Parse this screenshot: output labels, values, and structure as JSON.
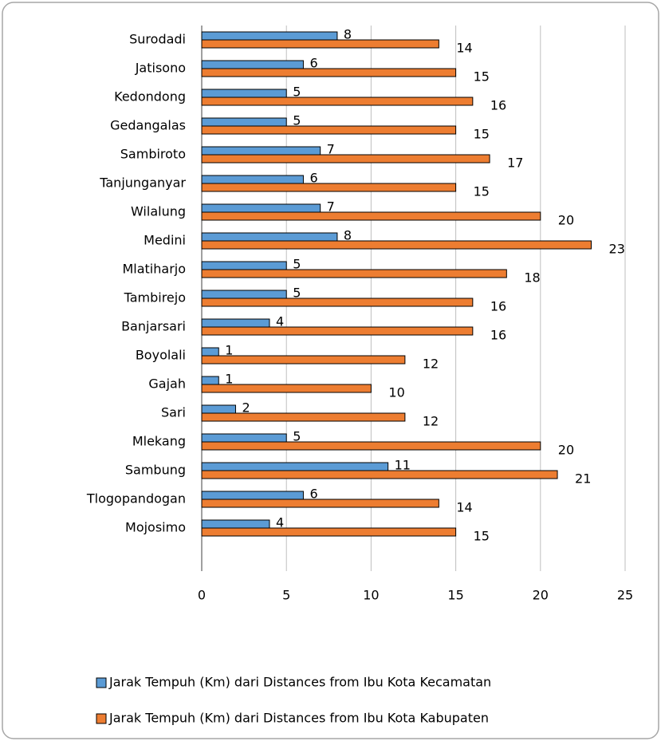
{
  "chart_data": {
    "type": "hbar",
    "categories": [
      "Surodadi",
      "Jatisono",
      "Kedondong",
      "Gedangalas",
      "Sambiroto",
      "Tanjunganyar",
      "Wilalung",
      "Medini",
      "Mlatiharjo",
      "Tambirejo",
      "Banjarsari",
      "Boyolali",
      "Gajah",
      "Sari",
      "Mlekang",
      "Sambung",
      "Tlogopandogan",
      "Mojosimo"
    ],
    "series": [
      {
        "name": "Jarak Tempuh (Km) dari Distances from Ibu Kota Kecamatan",
        "color": "#5b9bd5",
        "values": [
          8,
          6,
          5,
          5,
          7,
          6,
          7,
          8,
          5,
          5,
          4,
          1,
          1,
          2,
          5,
          11,
          6,
          4
        ]
      },
      {
        "name": "Jarak Tempuh (Km) dari Distances from Ibu Kota Kabupaten",
        "color": "#ed7d31",
        "values": [
          14,
          15,
          16,
          15,
          17,
          15,
          20,
          23,
          18,
          16,
          16,
          12,
          10,
          12,
          20,
          21,
          14,
          15
        ]
      }
    ],
    "xlim": [
      0,
      25
    ],
    "xticks": [
      0,
      5,
      10,
      15,
      20,
      25
    ],
    "grid": true,
    "legend": "bottom"
  }
}
